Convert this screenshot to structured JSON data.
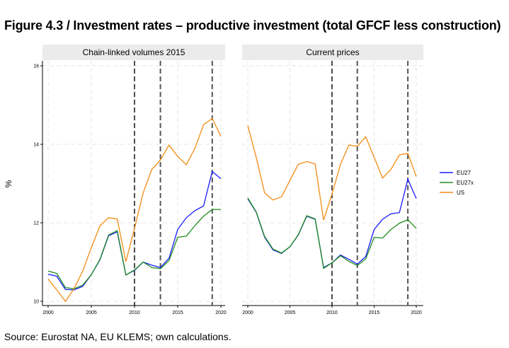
{
  "title": "Figure 4.3 / Investment rates – productive investment (total GFCF less construction)",
  "source": "Source: Eurostat NA, EU KLEMS; own calculations.",
  "colors": {
    "EU27": "#1a1aff",
    "EU27x": "#1e8c1e",
    "US": "#f28c14"
  },
  "chart_data": [
    {
      "type": "line",
      "title": "Chain-linked volumes 2015",
      "ylabel": "%",
      "xlim": [
        2000,
        2020
      ],
      "ylim": [
        10,
        16
      ],
      "xticks": [
        2000,
        2005,
        2010,
        2015,
        2020
      ],
      "yticks": [
        10,
        12,
        14,
        16
      ],
      "grid": true,
      "vlines": [
        2010,
        2013,
        2019
      ],
      "x": [
        2000,
        2001,
        2002,
        2003,
        2004,
        2005,
        2006,
        2007,
        2008,
        2009,
        2010,
        2011,
        2012,
        2013,
        2014,
        2015,
        2016,
        2017,
        2018,
        2019,
        2020
      ],
      "series": [
        {
          "name": "EU27",
          "values": [
            10.69,
            10.64,
            10.3,
            10.29,
            10.38,
            10.68,
            11.06,
            11.67,
            11.77,
            10.67,
            10.79,
            11.0,
            10.92,
            10.86,
            11.1,
            11.83,
            12.13,
            12.31,
            12.43,
            13.31,
            13.12
          ]
        },
        {
          "name": "EU27x",
          "values": [
            10.77,
            10.71,
            10.35,
            10.32,
            10.41,
            10.68,
            11.07,
            11.69,
            11.8,
            10.67,
            10.8,
            11.0,
            10.86,
            10.83,
            11.04,
            11.63,
            11.66,
            11.93,
            12.17,
            12.34,
            12.34
          ]
        },
        {
          "name": "US",
          "values": [
            10.57,
            10.29,
            10.0,
            10.32,
            10.77,
            11.37,
            11.92,
            12.13,
            12.1,
            11.01,
            11.86,
            12.76,
            13.36,
            13.6,
            13.98,
            13.69,
            13.48,
            13.9,
            14.5,
            14.66,
            14.2
          ]
        }
      ]
    },
    {
      "type": "line",
      "title": "Current prices",
      "xlim": [
        2000,
        2020
      ],
      "ylim": [
        10,
        16
      ],
      "xticks": [
        2000,
        2005,
        2010,
        2015,
        2020
      ],
      "grid": true,
      "vlines": [
        2010,
        2013,
        2019
      ],
      "x": [
        2000,
        2001,
        2002,
        2003,
        2004,
        2005,
        2006,
        2007,
        2008,
        2009,
        2010,
        2011,
        2012,
        2013,
        2014,
        2015,
        2016,
        2017,
        2018,
        2019,
        2020
      ],
      "series": [
        {
          "name": "EU27",
          "values": [
            12.61,
            12.27,
            11.63,
            11.31,
            11.22,
            11.39,
            11.69,
            12.17,
            12.09,
            10.86,
            10.98,
            11.18,
            11.07,
            10.95,
            11.14,
            11.83,
            12.09,
            12.23,
            12.26,
            13.11,
            12.62
          ]
        },
        {
          "name": "EU27x",
          "values": [
            12.63,
            12.28,
            11.65,
            11.33,
            11.23,
            11.39,
            11.7,
            12.18,
            12.1,
            10.84,
            10.98,
            11.16,
            11.02,
            10.91,
            11.08,
            11.63,
            11.61,
            11.83,
            11.99,
            12.08,
            11.86
          ]
        },
        {
          "name": "US",
          "values": [
            14.48,
            13.67,
            12.76,
            12.58,
            12.66,
            13.08,
            13.49,
            13.56,
            13.5,
            12.07,
            12.73,
            13.49,
            13.98,
            13.95,
            14.19,
            13.67,
            13.14,
            13.36,
            13.73,
            13.77,
            13.18
          ]
        }
      ]
    }
  ],
  "legend": {
    "position": "right",
    "items": [
      "EU27",
      "EU27x",
      "US"
    ]
  }
}
